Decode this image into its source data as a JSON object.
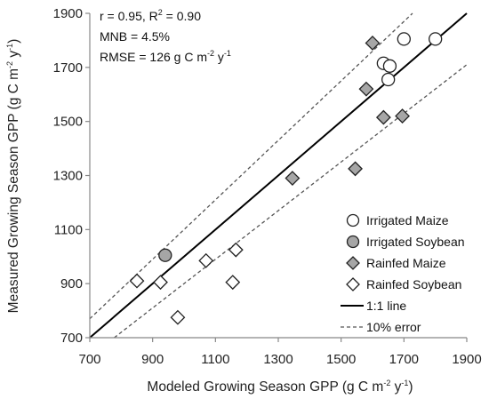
{
  "chart_data": {
    "type": "scatter",
    "xlabel": {
      "pre": "Modeled Growing Season GPP (g C m",
      "sup1": "-2",
      "mid": " y",
      "sup2": "-1",
      "post": ")"
    },
    "ylabel": {
      "pre": "Measured Growing Season GPP (g C m",
      "sup1": "-2",
      "mid": " y",
      "sup2": "-1",
      "post": ")"
    },
    "xlim": [
      700,
      1900
    ],
    "ylim": [
      700,
      1900
    ],
    "xticks": [
      700,
      900,
      1100,
      1300,
      1500,
      1700,
      1900
    ],
    "yticks": [
      700,
      900,
      1100,
      1300,
      1500,
      1700,
      1900
    ],
    "grid": false,
    "legend_position": "bottom-right",
    "stats": {
      "line1_pre": "r = 0.95, R",
      "line1_sup": "2",
      "line1_post": " = 0.90",
      "line2": "MNB = 4.5%",
      "line3_pre": "RMSE = 126 g C m",
      "line3_sup1": "-2",
      "line3_mid": " y",
      "line3_sup2": "-1"
    },
    "series": [
      {
        "name": "Irrigated Maize",
        "marker": "circle",
        "fill": "#ffffff",
        "points": [
          [
            1700,
            1805
          ],
          [
            1800,
            1805
          ],
          [
            1635,
            1715
          ],
          [
            1655,
            1705
          ],
          [
            1650,
            1655
          ]
        ]
      },
      {
        "name": "Irrigated Soybean",
        "marker": "circle",
        "fill": "#a6a6a6",
        "points": [
          [
            940,
            1005
          ]
        ]
      },
      {
        "name": "Rainfed Maize",
        "marker": "diamond",
        "fill": "#a6a6a6",
        "points": [
          [
            1600,
            1790
          ],
          [
            1580,
            1620
          ],
          [
            1635,
            1515
          ],
          [
            1695,
            1520
          ],
          [
            1545,
            1325
          ],
          [
            1345,
            1290
          ]
        ]
      },
      {
        "name": "Rainfed Soybean",
        "marker": "diamond",
        "fill": "#ffffff",
        "points": [
          [
            850,
            910
          ],
          [
            925,
            905
          ],
          [
            1070,
            985
          ],
          [
            1165,
            1025
          ],
          [
            1155,
            905
          ],
          [
            980,
            775
          ]
        ]
      }
    ],
    "lines": [
      {
        "name": "1:1 line",
        "style": "solid"
      },
      {
        "name": "10% error",
        "style": "dashed"
      }
    ]
  }
}
